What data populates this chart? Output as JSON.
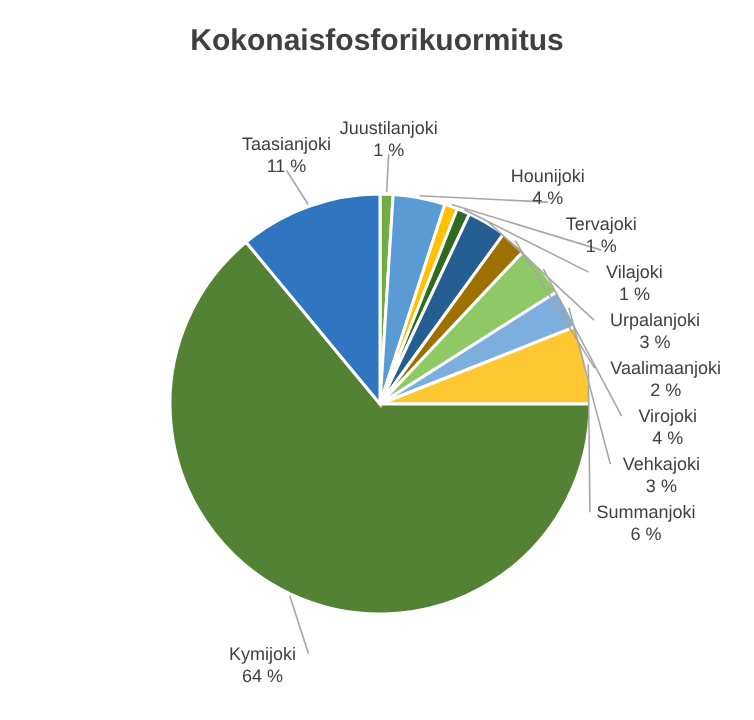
{
  "chart_data": {
    "type": "pie",
    "title": "Kokonaisfosforikuormitus",
    "categories": [
      "Juustilanjoki",
      "Hounijoki",
      "Tervajoki",
      "Vilajoki",
      "Urpalanjoki",
      "Vaalimaanjoki",
      "Virojoki",
      "Vehkajoki",
      "Summanjoki",
      "Kymijoki",
      "Taasianjoki"
    ],
    "values": [
      1,
      4,
      1,
      1,
      3,
      2,
      4,
      3,
      6,
      64,
      11
    ],
    "value_labels": [
      "1 %",
      "4 %",
      "1 %",
      "1 %",
      "3 %",
      "2 %",
      "4 %",
      "3 %",
      "6 %",
      "64 %",
      "11 %"
    ],
    "colors": [
      "#70ad47",
      "#5b9bd5",
      "#ffc000",
      "#2e6b1f",
      "#255e91",
      "#9e7000",
      "#8fc965",
      "#7cafdd",
      "#ffc832",
      "#548235",
      "#2f75c0"
    ]
  }
}
